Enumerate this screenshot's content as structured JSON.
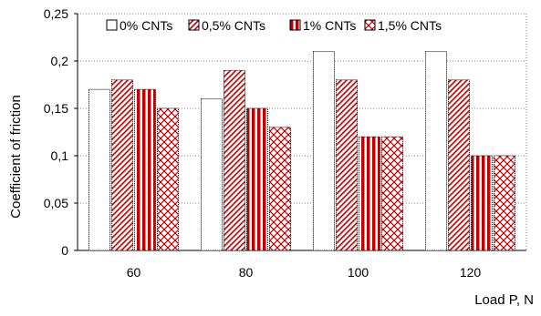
{
  "chart_data": {
    "type": "bar",
    "title": "",
    "xlabel": "Load P, N",
    "ylabel": "Coefficient of friction",
    "categories": [
      "60",
      "80",
      "100",
      "120"
    ],
    "series": [
      {
        "name": "0% CNTs",
        "values": [
          0.17,
          0.16,
          0.21,
          0.21
        ],
        "pattern": "white"
      },
      {
        "name": "0,5% CNTs",
        "values": [
          0.18,
          0.19,
          0.18,
          0.18
        ],
        "pattern": "diagonal-hatch"
      },
      {
        "name": "1% CNTs",
        "values": [
          0.17,
          0.15,
          0.12,
          0.1
        ],
        "pattern": "vertical-stripes"
      },
      {
        "name": "1,5% CNTs",
        "values": [
          0.15,
          0.13,
          0.12,
          0.1
        ],
        "pattern": "crosshatch"
      }
    ],
    "ylim": [
      0,
      0.25
    ],
    "yticks": [
      0,
      0.05,
      0.1,
      0.15,
      0.2,
      0.25
    ],
    "ytick_labels": [
      "0",
      "0,05",
      "0,1",
      "0,15",
      "0,2",
      "0,25"
    ],
    "grid": true,
    "legend_position": "top-left",
    "colors": {
      "accent": "#c00000",
      "bar_border": "#000000",
      "grid": "#7f7f7f"
    }
  }
}
